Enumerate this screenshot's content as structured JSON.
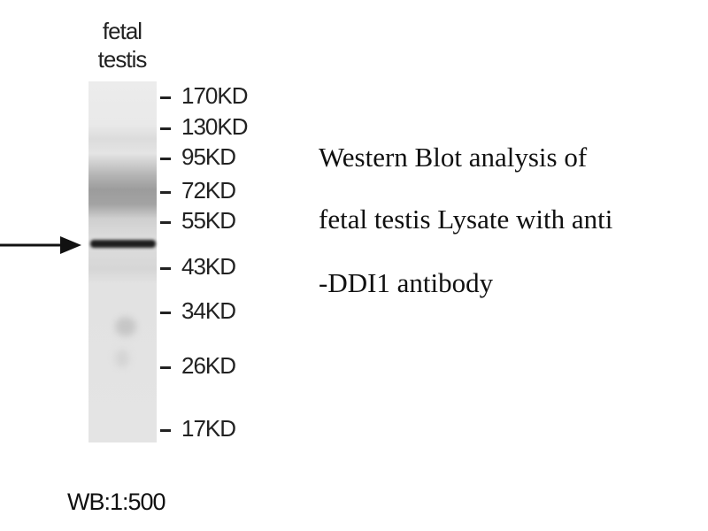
{
  "lane_label": [
    "fetal",
    "testis"
  ],
  "markers": [
    "170KD",
    "130KD",
    "95KD",
    "72KD",
    "55KD",
    "43KD",
    "34KD",
    "26KD",
    "17KD"
  ],
  "description": [
    "Western Blot analysis of",
    "fetal testis Lysate with anti",
    "-DDI1 antibody"
  ],
  "dilution": "WB:1:500"
}
